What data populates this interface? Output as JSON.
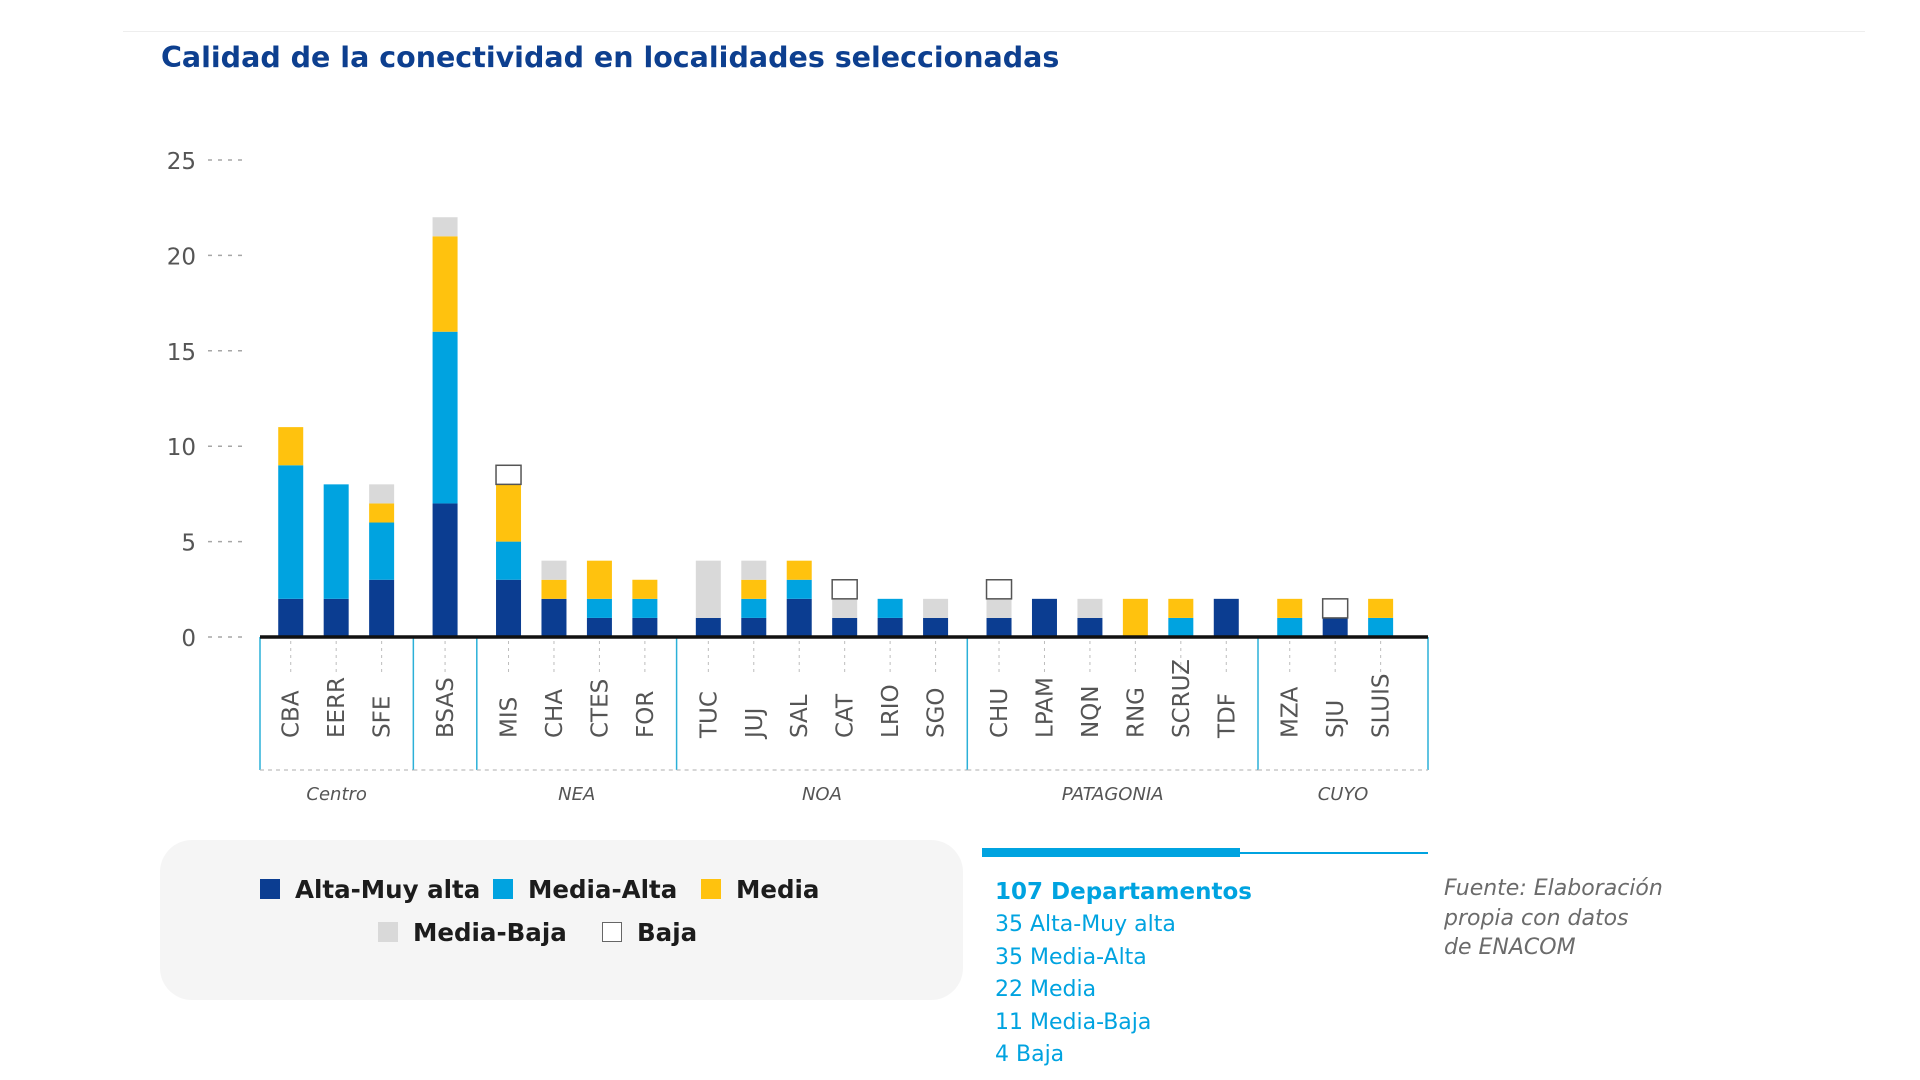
{
  "title": "Calidad de la conectividad en localidades seleccionadas",
  "colors": {
    "title": "#0d3f8f",
    "alta": "#0b3d91",
    "media_alta": "#00a3e0",
    "media": "#ffc20e",
    "media_baja": "#d9d9d9",
    "baja": "#ffffff",
    "summary": "#00a3e0",
    "axis": "#111111",
    "region_line": "#2bb0d8"
  },
  "legend": {
    "items": [
      {
        "key": "alta",
        "label": "Alta-Muy alta"
      },
      {
        "key": "media_alta",
        "label": "Media-Alta"
      },
      {
        "key": "media",
        "label": "Media"
      },
      {
        "key": "media_baja",
        "label": "Media-Baja"
      },
      {
        "key": "baja",
        "label": "Baja"
      }
    ]
  },
  "summary": {
    "total": "107 Departamentos",
    "lines": [
      "35 Alta-Muy alta",
      "35 Media-Alta",
      "22 Media",
      "11 Media-Baja",
      "4 Baja"
    ]
  },
  "source": {
    "lines": [
      "Fuente: Elaboración",
      "propia con datos",
      "de ENACOM"
    ]
  },
  "chart_data": {
    "type": "bar",
    "stacked": true,
    "ylim": [
      0,
      25
    ],
    "yticks": [
      0,
      5,
      10,
      15,
      20,
      25
    ],
    "categories": [
      "CBA",
      "EERR",
      "SFE",
      "BSAS",
      "MIS",
      "CHA",
      "CTES",
      "FOR",
      "TUC",
      "JUJ",
      "SAL",
      "CAT",
      "LRIO",
      "SGO",
      "CHU",
      "LPAM",
      "NQN",
      "RNG",
      "SCRUZ",
      "TDF",
      "MZA",
      "SJU",
      "SLUIS"
    ],
    "series": [
      {
        "name": "Alta-Muy alta",
        "key": "alta",
        "values": [
          2,
          2,
          3,
          7,
          3,
          2,
          1,
          1,
          1,
          1,
          2,
          1,
          1,
          1,
          1,
          2,
          1,
          0,
          0,
          2,
          0,
          1,
          0
        ]
      },
      {
        "name": "Media-Alta",
        "key": "media_alta",
        "values": [
          7,
          6,
          3,
          9,
          2,
          0,
          1,
          1,
          0,
          1,
          1,
          0,
          1,
          0,
          0,
          0,
          0,
          0,
          1,
          0,
          1,
          0,
          1
        ]
      },
      {
        "name": "Media",
        "key": "media",
        "values": [
          2,
          0,
          1,
          5,
          3,
          1,
          2,
          1,
          0,
          1,
          1,
          0,
          0,
          0,
          0,
          0,
          0,
          2,
          1,
          0,
          1,
          0,
          1
        ]
      },
      {
        "name": "Media-Baja",
        "key": "media_baja",
        "values": [
          0,
          0,
          1,
          1,
          0,
          1,
          0,
          0,
          3,
          1,
          0,
          1,
          0,
          1,
          1,
          0,
          1,
          0,
          0,
          0,
          0,
          0,
          0
        ]
      },
      {
        "name": "Baja",
        "key": "baja",
        "values": [
          0,
          0,
          0,
          0,
          1,
          0,
          0,
          0,
          0,
          0,
          0,
          1,
          0,
          0,
          1,
          0,
          0,
          0,
          0,
          0,
          0,
          1,
          0
        ]
      }
    ],
    "groups": [
      {
        "name": "Centro",
        "start": 0,
        "end": 2
      },
      {
        "name": "",
        "start": 3,
        "end": 3
      },
      {
        "name": "NEA",
        "start": 4,
        "end": 7
      },
      {
        "name": "NOA",
        "start": 8,
        "end": 13
      },
      {
        "name": "PATAGONIA",
        "start": 14,
        "end": 19
      },
      {
        "name": "CUYO",
        "start": 20,
        "end": 22
      }
    ]
  }
}
